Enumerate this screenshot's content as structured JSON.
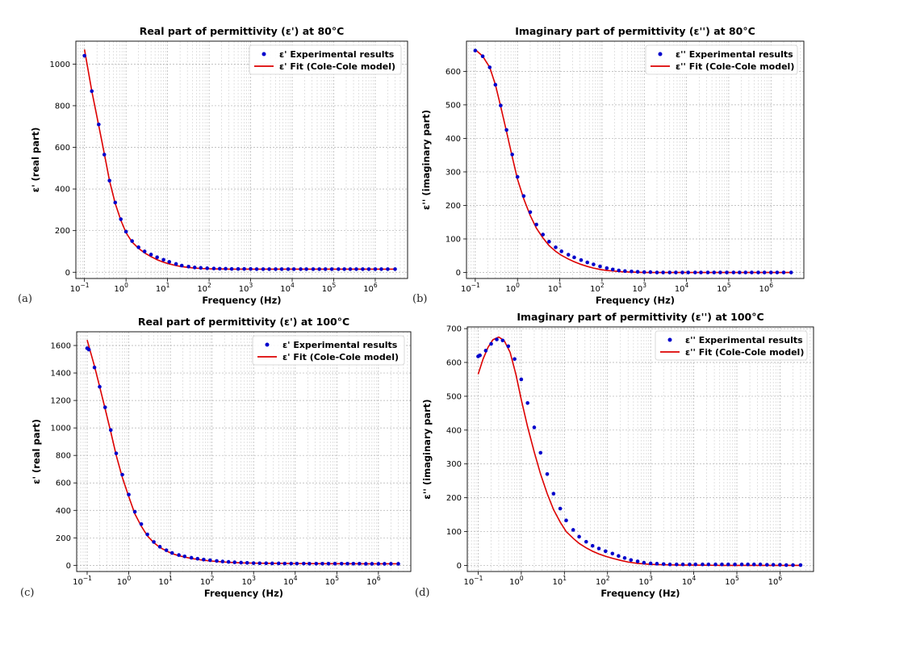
{
  "chart_data": [
    {
      "type": "scatter",
      "panel_label": "(a)",
      "title": "Real part of permittivity (ε') at 80°C",
      "xlabel": "Frequency (Hz)",
      "ylabel": "ε' (real part)",
      "xscale": "log",
      "xlim": [
        0.062,
        6000000
      ],
      "ylim": [
        -30,
        1110
      ],
      "yticks": [
        0,
        200,
        400,
        600,
        800,
        1000
      ],
      "xtick_exponents": [
        -1,
        0,
        1,
        2,
        3,
        4,
        5,
        6
      ],
      "grid": true,
      "legend_position": "top-right",
      "series": [
        {
          "name": "ε' Experimental results",
          "kind": "points",
          "color": "#0000cc",
          "x": [
            0.1,
            0.15,
            0.22,
            0.3,
            0.4,
            0.55,
            0.75,
            1,
            1.4,
            2,
            2.8,
            4,
            5.6,
            8,
            11,
            16,
            22,
            32,
            45,
            63,
            90,
            130,
            180,
            250,
            350,
            500,
            700,
            1000,
            1400,
            2000,
            2800,
            4000,
            5600,
            8000,
            11000,
            16000,
            22000,
            32000,
            45000,
            63000,
            90000,
            130000,
            180000,
            250000,
            350000,
            500000,
            700000,
            1000000,
            1400000,
            2000000,
            3000000
          ],
          "y": [
            1040,
            870,
            710,
            565,
            440,
            335,
            255,
            195,
            150,
            120,
            100,
            85,
            72,
            60,
            50,
            40,
            32,
            27,
            23,
            21,
            19,
            18,
            17,
            17,
            16,
            16,
            16,
            16,
            15,
            15,
            15,
            15,
            15,
            15,
            15,
            15,
            15,
            15,
            15,
            15,
            15,
            15,
            15,
            15,
            15,
            15,
            15,
            15,
            15,
            15,
            15
          ]
        },
        {
          "name": "ε' Fit (Cole-Cole model)",
          "kind": "line",
          "color": "#dd0000",
          "x": [
            0.1,
            0.15,
            0.22,
            0.3,
            0.4,
            0.55,
            0.75,
            1,
            1.4,
            2,
            2.8,
            4,
            5.6,
            8,
            11,
            16,
            22,
            32,
            45,
            63,
            90,
            130,
            200,
            300,
            500,
            1000,
            2000,
            5000,
            10000,
            50000,
            100000,
            500000,
            1000000,
            3000000
          ],
          "y": [
            1070,
            870,
            705,
            570,
            440,
            330,
            250,
            190,
            145,
            115,
            93,
            75,
            60,
            48,
            40,
            32,
            27,
            23,
            20,
            18,
            17,
            16,
            16,
            15,
            15,
            15,
            15,
            15,
            15,
            15,
            15,
            15,
            15,
            15
          ]
        }
      ]
    },
    {
      "type": "scatter",
      "panel_label": "(b)",
      "title": "Imaginary part of permittivity (ε'') at 80°C",
      "xlabel": "Frequency (Hz)",
      "ylabel": "ε'' (imaginary part)",
      "xscale": "log",
      "xlim": [
        0.062,
        6000000
      ],
      "ylim": [
        -18,
        690
      ],
      "yticks": [
        0,
        100,
        200,
        300,
        400,
        500,
        600
      ],
      "xtick_exponents": [
        -1,
        0,
        1,
        2,
        3,
        4,
        5,
        6
      ],
      "grid": true,
      "legend_position": "top-right",
      "series": [
        {
          "name": "ε'' Experimental results",
          "kind": "points",
          "color": "#0000cc",
          "x": [
            0.1,
            0.15,
            0.22,
            0.3,
            0.4,
            0.55,
            0.75,
            1,
            1.4,
            2,
            2.8,
            4,
            5.6,
            8,
            11,
            16,
            22,
            32,
            45,
            63,
            90,
            130,
            180,
            250,
            350,
            500,
            700,
            1000,
            1400,
            2000,
            2800,
            4000,
            5600,
            8000,
            11000,
            16000,
            22000,
            32000,
            45000,
            63000,
            90000,
            130000,
            180000,
            250000,
            350000,
            500000,
            700000,
            1000000,
            1400000,
            2000000,
            3000000
          ],
          "y": [
            662,
            645,
            612,
            560,
            498,
            425,
            352,
            285,
            228,
            180,
            143,
            113,
            92,
            75,
            63,
            53,
            45,
            37,
            30,
            24,
            18,
            13,
            9,
            6,
            4,
            3,
            2,
            1,
            1,
            0,
            0,
            0,
            0,
            0,
            0,
            0,
            0,
            0,
            0,
            0,
            0,
            0,
            0,
            0,
            0,
            0,
            0,
            0,
            0,
            0,
            0
          ]
        },
        {
          "name": "ε'' Fit (Cole-Cole model)",
          "kind": "line",
          "color": "#dd0000",
          "x": [
            0.1,
            0.15,
            0.22,
            0.3,
            0.4,
            0.55,
            0.75,
            1,
            1.4,
            2,
            2.8,
            4,
            5.6,
            8,
            11,
            16,
            22,
            32,
            45,
            63,
            90,
            130,
            200,
            300,
            500,
            1000,
            2000,
            5000,
            10000,
            50000,
            100000,
            500000,
            1000000,
            3000000
          ],
          "y": [
            665,
            645,
            612,
            560,
            495,
            420,
            345,
            278,
            220,
            170,
            132,
            103,
            80,
            63,
            51,
            40,
            32,
            24,
            18,
            13,
            9,
            6,
            4,
            2,
            1,
            0,
            0,
            0,
            0,
            0,
            0,
            0,
            0,
            0
          ]
        }
      ]
    },
    {
      "type": "scatter",
      "panel_label": "(c)",
      "title": "Real part of permittivity (ε') at 100°C",
      "xlabel": "Frequency (Hz)",
      "ylabel": "ε' (real part)",
      "xscale": "log",
      "xlim": [
        0.056,
        6000000
      ],
      "ylim": [
        -45,
        1700
      ],
      "yticks": [
        0,
        200,
        400,
        600,
        800,
        1000,
        1200,
        1400,
        1600
      ],
      "xtick_exponents": [
        -1,
        0,
        1,
        2,
        3,
        4,
        5,
        6
      ],
      "grid": true,
      "legend_position": "top-right",
      "series": [
        {
          "name": "ε' Experimental results",
          "kind": "points",
          "color": "#0000cc",
          "x": [
            0.1,
            0.11,
            0.15,
            0.2,
            0.27,
            0.37,
            0.5,
            0.7,
            1,
            1.4,
            2,
            2.8,
            4,
            5.6,
            8,
            11,
            16,
            22,
            32,
            45,
            63,
            90,
            130,
            180,
            250,
            350,
            500,
            700,
            1000,
            1400,
            2000,
            2800,
            4000,
            5600,
            8000,
            11000,
            16000,
            22000,
            32000,
            45000,
            63000,
            90000,
            130000,
            180000,
            250000,
            350000,
            500000,
            700000,
            1000000,
            1400000,
            2000000,
            3000000
          ],
          "y": [
            1580,
            1570,
            1440,
            1300,
            1150,
            985,
            815,
            660,
            515,
            390,
            300,
            225,
            170,
            135,
            110,
            90,
            75,
            65,
            55,
            48,
            42,
            37,
            32,
            28,
            25,
            22,
            20,
            18,
            16,
            15,
            15,
            14,
            14,
            13,
            13,
            13,
            13,
            12,
            12,
            12,
            12,
            12,
            12,
            12,
            12,
            12,
            11,
            11,
            11,
            11,
            11,
            11
          ]
        },
        {
          "name": "ε' Fit (Cole-Cole model)",
          "kind": "line",
          "color": "#dd0000",
          "x": [
            0.1,
            0.15,
            0.2,
            0.27,
            0.37,
            0.5,
            0.7,
            1,
            1.4,
            2,
            2.8,
            4,
            5.6,
            8,
            11,
            16,
            22,
            32,
            45,
            63,
            90,
            130,
            200,
            300,
            500,
            1000,
            2000,
            5000,
            10000,
            50000,
            100000,
            500000,
            1000000,
            3000000
          ],
          "y": [
            1640,
            1450,
            1300,
            1140,
            970,
            800,
            640,
            500,
            375,
            285,
            215,
            165,
            130,
            105,
            85,
            70,
            60,
            50,
            43,
            37,
            32,
            28,
            24,
            21,
            18,
            16,
            15,
            14,
            13,
            12,
            12,
            11,
            11,
            11
          ]
        }
      ]
    },
    {
      "type": "scatter",
      "panel_label": "(d)",
      "title": "Imaginary part of permittivity (ε'') at 100°C",
      "xlabel": "Frequency (Hz)",
      "ylabel": "ε'' (imaginary part)",
      "xscale": "log",
      "xlim": [
        0.056,
        6000000
      ],
      "ylim": [
        -18,
        705
      ],
      "yticks": [
        0,
        100,
        200,
        300,
        400,
        500,
        600,
        700
      ],
      "xtick_exponents": [
        -1,
        0,
        1,
        2,
        3,
        4,
        5,
        6
      ],
      "grid": true,
      "legend_position": "top-right",
      "series": [
        {
          "name": "ε'' Experimental results",
          "kind": "points",
          "color": "#0000cc",
          "x": [
            0.1,
            0.11,
            0.15,
            0.2,
            0.27,
            0.37,
            0.5,
            0.7,
            1,
            1.4,
            2,
            2.8,
            4,
            5.6,
            8,
            11,
            16,
            22,
            32,
            45,
            63,
            90,
            130,
            180,
            250,
            350,
            500,
            700,
            1000,
            1400,
            2000,
            2800,
            4000,
            5600,
            8000,
            11000,
            16000,
            22000,
            32000,
            45000,
            63000,
            90000,
            130000,
            180000,
            250000,
            350000,
            500000,
            700000,
            1000000,
            1400000,
            2000000,
            3000000
          ],
          "y": [
            618,
            621,
            635,
            655,
            668,
            665,
            648,
            610,
            550,
            480,
            408,
            333,
            270,
            212,
            168,
            133,
            105,
            85,
            70,
            58,
            50,
            42,
            35,
            28,
            22,
            16,
            12,
            8,
            6,
            5,
            4,
            3,
            3,
            3,
            3,
            3,
            3,
            3,
            3,
            3,
            3,
            3,
            3,
            3,
            3,
            3,
            2,
            2,
            2,
            1,
            1,
            1
          ]
        },
        {
          "name": "ε'' Fit (Cole-Cole model)",
          "kind": "line",
          "color": "#dd0000",
          "x": [
            0.1,
            0.13,
            0.17,
            0.22,
            0.3,
            0.4,
            0.55,
            0.75,
            1,
            1.4,
            2,
            2.8,
            4,
            5.6,
            8,
            11,
            16,
            22,
            32,
            45,
            63,
            90,
            130,
            200,
            300,
            500,
            1000,
            2000,
            5000,
            10000,
            50000,
            100000,
            500000,
            1000000,
            3000000
          ],
          "y": [
            565,
            610,
            645,
            667,
            675,
            665,
            630,
            565,
            490,
            410,
            335,
            270,
            212,
            165,
            128,
            100,
            80,
            65,
            52,
            42,
            34,
            27,
            21,
            15,
            10,
            6,
            3,
            2,
            1,
            1,
            0,
            0,
            0,
            0,
            0
          ]
        }
      ]
    }
  ]
}
